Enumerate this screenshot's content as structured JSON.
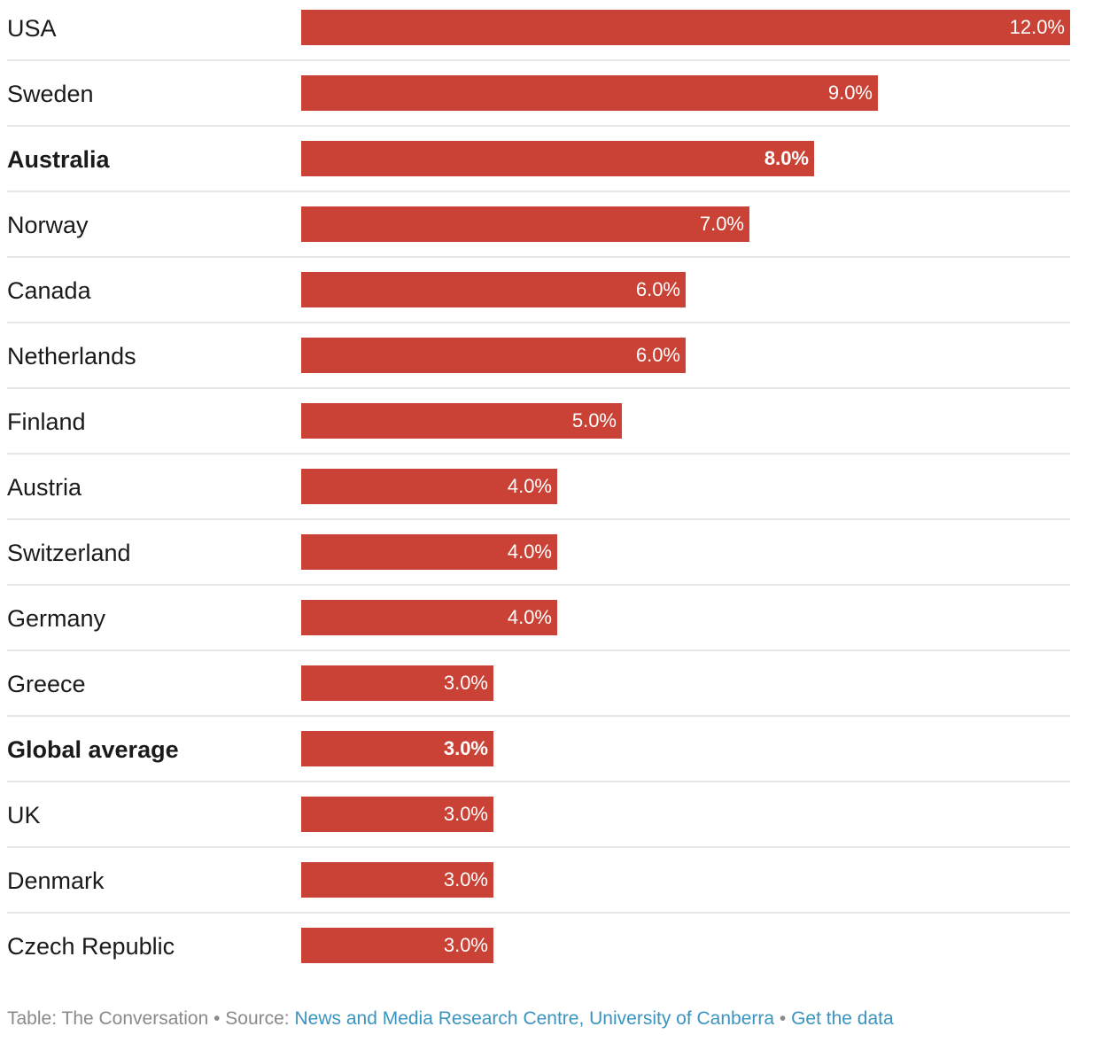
{
  "chart_data": {
    "type": "bar",
    "orientation": "horizontal",
    "categories": [
      "USA",
      "Sweden",
      "Australia",
      "Norway",
      "Canada",
      "Netherlands",
      "Finland",
      "Austria",
      "Switzerland",
      "Germany",
      "Greece",
      "Global average",
      "UK",
      "Denmark",
      "Czech Republic"
    ],
    "values": [
      12.0,
      9.0,
      8.0,
      7.0,
      6.0,
      6.0,
      5.0,
      4.0,
      4.0,
      4.0,
      3.0,
      3.0,
      3.0,
      3.0,
      3.0
    ],
    "value_labels": [
      "12.0%",
      "9.0%",
      "8.0%",
      "7.0%",
      "6.0%",
      "6.0%",
      "5.0%",
      "4.0%",
      "4.0%",
      "4.0%",
      "3.0%",
      "3.0%",
      "3.0%",
      "3.0%",
      "3.0%"
    ],
    "highlighted": [
      "Australia",
      "Global average"
    ],
    "xlim": [
      0,
      12
    ],
    "grid": false,
    "bar_color": "#c94235"
  },
  "footer": {
    "prefix": "Table: The Conversation • Source: ",
    "source_link": "News and Media Research Centre, University of Canberra",
    "separator": " • ",
    "data_link": "Get the data"
  },
  "colors": {
    "link": "#3b94c0",
    "footer_text": "#8a8a8a"
  }
}
